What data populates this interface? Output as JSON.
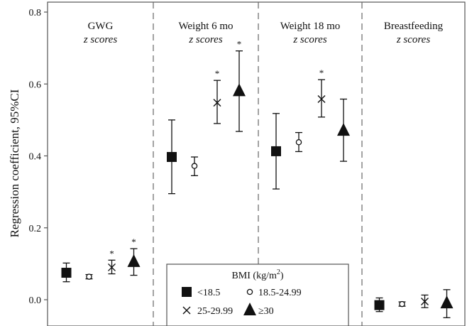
{
  "chart_data": {
    "type": "scatter",
    "ylabel": "Regression coefficient, 95%CI",
    "ylim": [
      -0.04,
      0.8
    ],
    "yticks": [
      {
        "value": 0.0,
        "label": "0.0"
      },
      {
        "value": 0.2,
        "label": "0.2"
      },
      {
        "value": 0.4,
        "label": "0.4"
      },
      {
        "value": 0.6,
        "label": "0.6"
      },
      {
        "value": 0.8,
        "label": "0.8"
      }
    ],
    "legend": {
      "title": "BMI (kg/m",
      "title_sup": "2",
      "title_end": ")",
      "placement": "bottom-center"
    },
    "panels": [
      {
        "title": "GWG",
        "subtitle": "z scores"
      },
      {
        "title": "Weight 6 mo",
        "subtitle": "z scores"
      },
      {
        "title": "Weight 18 mo",
        "subtitle": "z scores"
      },
      {
        "title": "Breastfeeding",
        "subtitle": "z scores"
      }
    ],
    "series": [
      {
        "name": "<18.5",
        "marker": "square",
        "points": [
          {
            "panel": 0,
            "y": 0.075,
            "lo": 0.05,
            "hi": 0.102,
            "sig": ""
          },
          {
            "panel": 1,
            "y": 0.397,
            "lo": 0.295,
            "hi": 0.5,
            "sig": ""
          },
          {
            "panel": 2,
            "y": 0.413,
            "lo": 0.308,
            "hi": 0.518,
            "sig": ""
          },
          {
            "panel": 3,
            "y": -0.015,
            "lo": -0.033,
            "hi": 0.005,
            "sig": ""
          }
        ]
      },
      {
        "name": "18.5-24.99",
        "marker": "circle",
        "points": [
          {
            "panel": 0,
            "y": 0.064,
            "lo": 0.058,
            "hi": 0.07,
            "sig": ""
          },
          {
            "panel": 1,
            "y": 0.372,
            "lo": 0.345,
            "hi": 0.397,
            "sig": ""
          },
          {
            "panel": 2,
            "y": 0.438,
            "lo": 0.412,
            "hi": 0.465,
            "sig": ""
          },
          {
            "panel": 3,
            "y": -0.012,
            "lo": -0.018,
            "hi": -0.006,
            "sig": ""
          }
        ]
      },
      {
        "name": "25-29.99",
        "marker": "x",
        "points": [
          {
            "panel": 0,
            "y": 0.09,
            "lo": 0.072,
            "hi": 0.11,
            "sig": "*"
          },
          {
            "panel": 1,
            "y": 0.548,
            "lo": 0.49,
            "hi": 0.61,
            "sig": "*"
          },
          {
            "panel": 2,
            "y": 0.558,
            "lo": 0.508,
            "hi": 0.612,
            "sig": "*"
          },
          {
            "panel": 3,
            "y": -0.005,
            "lo": -0.022,
            "hi": 0.013,
            "sig": ""
          }
        ]
      },
      {
        "name": "≥30",
        "marker": "triangle",
        "points": [
          {
            "panel": 0,
            "y": 0.105,
            "lo": 0.068,
            "hi": 0.142,
            "sig": "*"
          },
          {
            "panel": 1,
            "y": 0.58,
            "lo": 0.468,
            "hi": 0.692,
            "sig": "*"
          },
          {
            "panel": 2,
            "y": 0.47,
            "lo": 0.385,
            "hi": 0.558,
            "sig": ""
          },
          {
            "panel": 3,
            "y": -0.01,
            "lo": -0.05,
            "hi": 0.028,
            "sig": ""
          }
        ]
      }
    ]
  }
}
